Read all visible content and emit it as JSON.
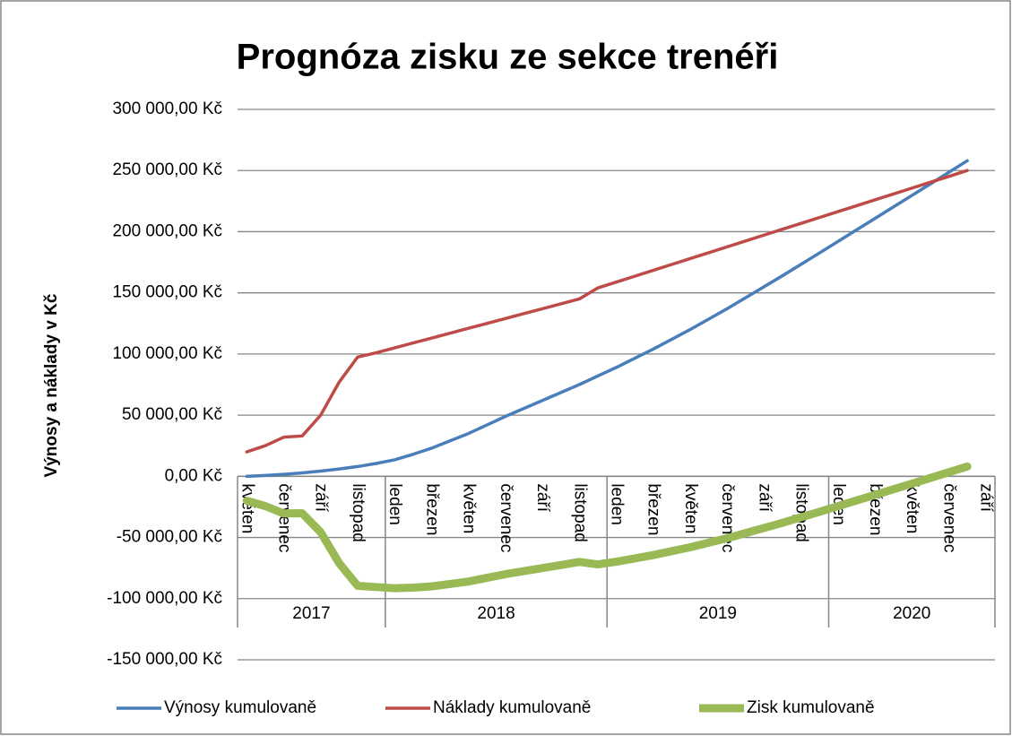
{
  "chart_data": {
    "type": "line",
    "title": "Prognóza zisku ze sekce trenéři",
    "y_axis_label": "Výnosy a náklady v Kč",
    "categories": [
      "květen",
      null,
      "červenec",
      null,
      "září",
      null,
      "listopad",
      null,
      "leden",
      null,
      "březen",
      null,
      "květen",
      null,
      "červenec",
      null,
      "září",
      null,
      "listopad",
      null,
      "leden",
      null,
      "březen",
      null,
      "květen",
      null,
      "červenec",
      null,
      "září",
      null,
      "listopad",
      null,
      "leden",
      null,
      "březen",
      null,
      "květen",
      null,
      "červenec",
      null,
      "září"
    ],
    "year_groups": [
      {
        "label": "2017",
        "count": 8
      },
      {
        "label": "2018",
        "count": 12
      },
      {
        "label": "2019",
        "count": 12
      },
      {
        "label": "2020",
        "count": 9
      }
    ],
    "series": [
      {
        "name": "Výnosy kumulovaně",
        "color": "#4a7ebb",
        "values": [
          0,
          700,
          1600,
          2800,
          4300,
          6000,
          8000,
          10500,
          13500,
          18000,
          23000,
          29000,
          35000,
          42000,
          49000,
          55500,
          62000,
          68500,
          75000,
          82000,
          89000,
          96500,
          104000,
          112000,
          120000,
          128500,
          137000,
          146000,
          155000,
          164000,
          173300,
          182600,
          192000,
          201400,
          210800,
          220200,
          229600,
          239000,
          248500,
          258000,
          null
        ]
      },
      {
        "name": "Náklady kumulovaně",
        "color": "#be4b48",
        "values": [
          20000,
          25000,
          32000,
          33000,
          50000,
          77000,
          97500,
          101000,
          105000,
          109000,
          113000,
          117000,
          121000,
          125000,
          129000,
          133000,
          137000,
          141000,
          145000,
          154000,
          158800,
          163600,
          168400,
          173200,
          178000,
          182800,
          187600,
          192400,
          197200,
          202000,
          206800,
          211600,
          216400,
          221200,
          226000,
          230800,
          235600,
          240400,
          245200,
          250000,
          null
        ]
      },
      {
        "name": "Zisk kumulovaně",
        "color": "#98b954",
        "values": [
          -20000,
          -24300,
          -30400,
          -30200,
          -45700,
          -71000,
          -89500,
          -90500,
          -91500,
          -91000,
          -90000,
          -88000,
          -86000,
          -83000,
          -80000,
          -77500,
          -75000,
          -72500,
          -70000,
          -72000,
          -69800,
          -67100,
          -64400,
          -61200,
          -58000,
          -54300,
          -50600,
          -46400,
          -42200,
          -38000,
          -33500,
          -29000,
          -24400,
          -19800,
          -15200,
          -10600,
          -6000,
          -1400,
          3300,
          8000,
          null
        ]
      }
    ],
    "ylim": [
      -150000,
      300000
    ],
    "yticks": [
      {
        "value": -150000,
        "label": "-150 000,00 Kč"
      },
      {
        "value": -100000,
        "label": "-100 000,00 Kč"
      },
      {
        "value": -50000,
        "label": "-50 000,00 Kč"
      },
      {
        "value": 0,
        "label": "0,00 Kč"
      },
      {
        "value": 50000,
        "label": "50 000,00 Kč"
      },
      {
        "value": 100000,
        "label": "100 000,00 Kč"
      },
      {
        "value": 150000,
        "label": "150 000,00 Kč"
      },
      {
        "value": 200000,
        "label": "200 000,00 Kč"
      },
      {
        "value": 250000,
        "label": "250 000,00 Kč"
      },
      {
        "value": 300000,
        "label": "300 000,00 Kč"
      }
    ],
    "grid": true,
    "legend": "bottom"
  }
}
